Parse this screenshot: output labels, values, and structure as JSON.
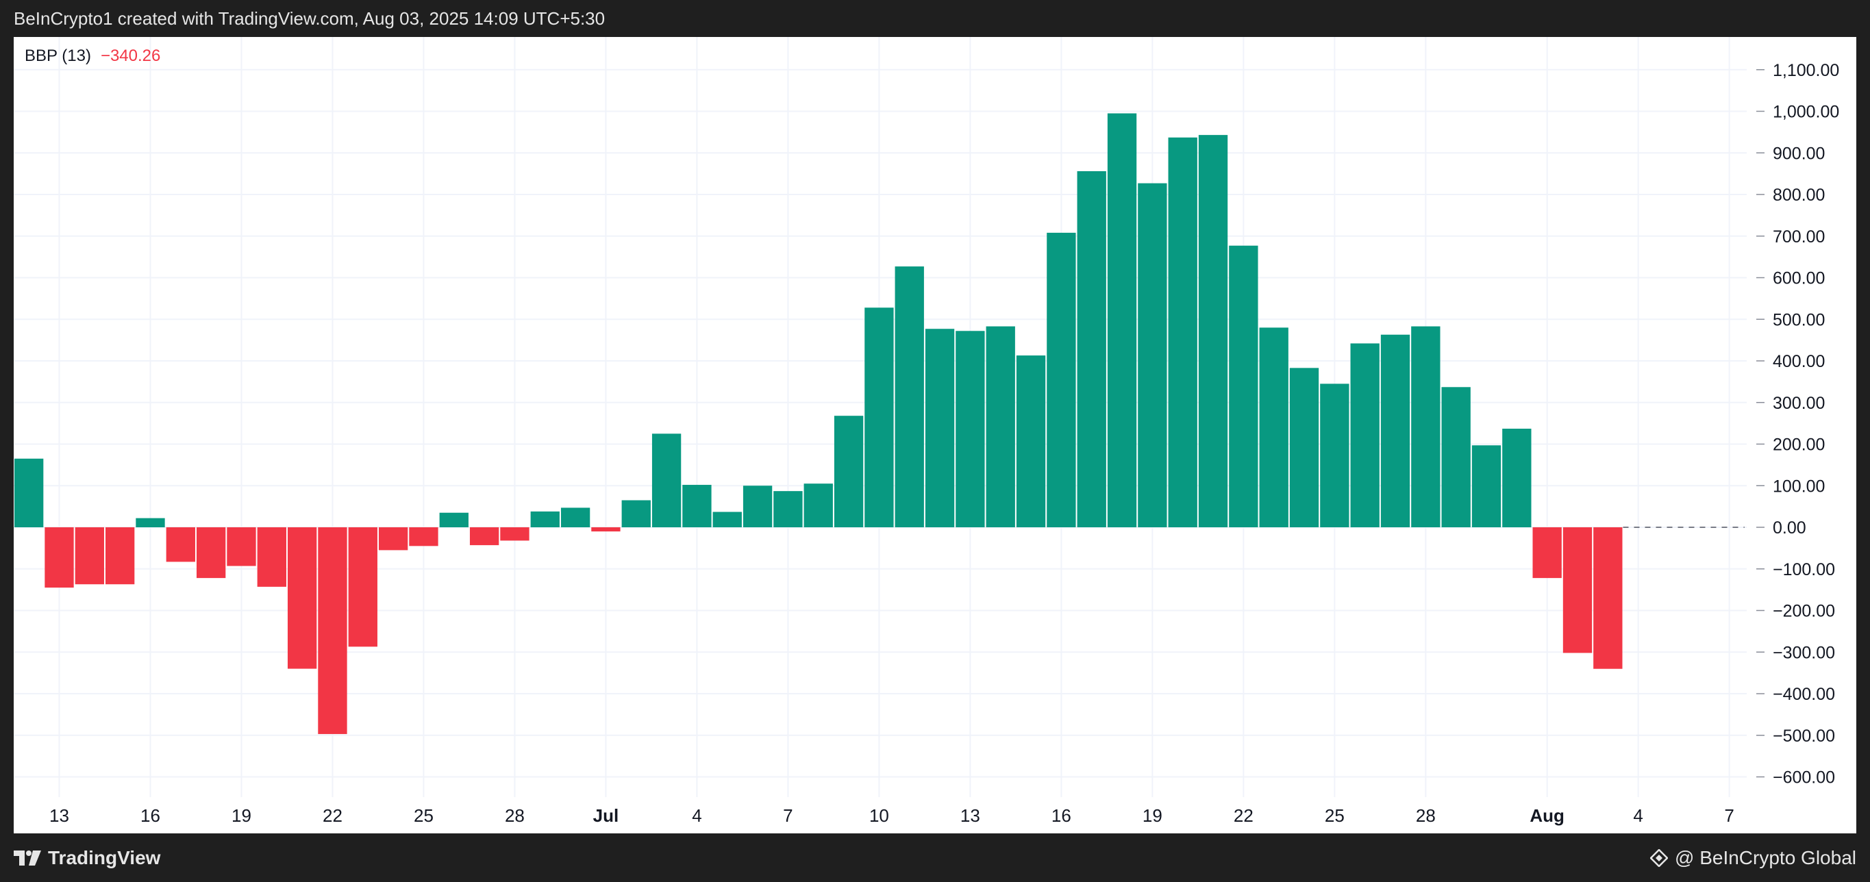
{
  "header": {
    "caption": "BeInCrypto1 created with TradingView.com, Aug 03, 2025 14:09 UTC+5:30"
  },
  "legend": {
    "name": "BBP (13)",
    "value": "−340.26"
  },
  "footer": {
    "brand": "TradingView",
    "credit": "@ BeInCrypto Global"
  },
  "colors": {
    "positive": "#089981",
    "negative": "#f23645",
    "grid": "#f0f3fa",
    "text": "#131722",
    "frame": "#1f1f1f"
  },
  "chart_data": {
    "type": "bar",
    "title": "",
    "indicator": "BBP (13)",
    "ylim": [
      -650,
      1125
    ],
    "y_ticks": [
      1100,
      1000,
      900,
      800,
      700,
      600,
      500,
      400,
      300,
      200,
      100,
      0,
      -100,
      -200,
      -300,
      -400,
      -500,
      -600
    ],
    "y_tick_labels": [
      "1,100.00",
      "1,000.00",
      "900.00",
      "800.00",
      "700.00",
      "600.00",
      "500.00",
      "400.00",
      "300.00",
      "200.00",
      "100.00",
      "0.00",
      "−100.00",
      "−200.00",
      "−300.00",
      "−400.00",
      "−500.00",
      "−600.00"
    ],
    "x_ticks": [
      {
        "label": "13",
        "bar_index": 1,
        "bold": false
      },
      {
        "label": "16",
        "bar_index": 4,
        "bold": false
      },
      {
        "label": "19",
        "bar_index": 7,
        "bold": false
      },
      {
        "label": "22",
        "bar_index": 10,
        "bold": false
      },
      {
        "label": "25",
        "bar_index": 13,
        "bold": false
      },
      {
        "label": "28",
        "bar_index": 16,
        "bold": false
      },
      {
        "label": "Jul",
        "bar_index": 19,
        "bold": true
      },
      {
        "label": "4",
        "bar_index": 22,
        "bold": false
      },
      {
        "label": "7",
        "bar_index": 25,
        "bold": false
      },
      {
        "label": "10",
        "bar_index": 28,
        "bold": false
      },
      {
        "label": "13",
        "bar_index": 31,
        "bold": false
      },
      {
        "label": "16",
        "bar_index": 34,
        "bold": false
      },
      {
        "label": "19",
        "bar_index": 37,
        "bold": false
      },
      {
        "label": "22",
        "bar_index": 40,
        "bold": false
      },
      {
        "label": "25",
        "bar_index": 43,
        "bold": false
      },
      {
        "label": "28",
        "bar_index": 46,
        "bold": false
      },
      {
        "label": "Aug",
        "bar_index": 50,
        "bold": true
      },
      {
        "label": "4",
        "bar_index": 53,
        "bold": false
      },
      {
        "label": "7",
        "bar_index": 56,
        "bold": false
      }
    ],
    "values": [
      165,
      -145,
      -137,
      -137,
      22,
      -83,
      -122,
      -93,
      -143,
      -340,
      -497,
      -287,
      -55,
      -45,
      35,
      -43,
      -32,
      38,
      47,
      -10,
      65,
      225,
      102,
      37,
      100,
      87,
      105,
      268,
      528,
      627,
      477,
      472,
      483,
      413,
      708,
      856,
      995,
      827,
      937,
      943,
      677,
      480,
      383,
      345,
      442,
      463,
      483,
      337,
      197,
      237,
      -122,
      -302,
      -340.26
    ],
    "zero_line_extends_to_bar": 57
  }
}
